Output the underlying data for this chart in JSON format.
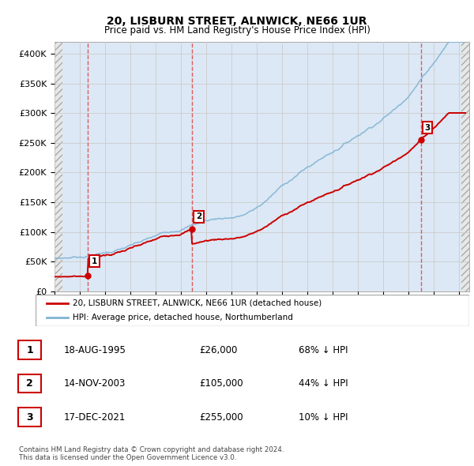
{
  "title1": "20, LISBURN STREET, ALNWICK, NE66 1UR",
  "title2": "Price paid vs. HM Land Registry's House Price Index (HPI)",
  "ylabel_ticks": [
    "£0",
    "£50K",
    "£100K",
    "£150K",
    "£200K",
    "£250K",
    "£300K",
    "£350K",
    "£400K"
  ],
  "ytick_values": [
    0,
    50000,
    100000,
    150000,
    200000,
    250000,
    300000,
    350000,
    400000
  ],
  "ylim": [
    0,
    420000
  ],
  "xlim_start": 1993.0,
  "xlim_end": 2025.8,
  "hatch_left_end": 1993.5,
  "hatch_right_start": 2025.2,
  "sales": [
    {
      "date": 1995.62,
      "price": 26000,
      "label": "1"
    },
    {
      "date": 2003.87,
      "price": 105000,
      "label": "2"
    },
    {
      "date": 2021.96,
      "price": 255000,
      "label": "3"
    }
  ],
  "sale_color": "#cc0000",
  "hpi_color": "#7fb3d3",
  "legend_label_sale": "20, LISBURN STREET, ALNWICK, NE66 1UR (detached house)",
  "legend_label_hpi": "HPI: Average price, detached house, Northumberland",
  "table_rows": [
    {
      "num": "1",
      "date": "18-AUG-1995",
      "price": "£26,000",
      "note": "68% ↓ HPI"
    },
    {
      "num": "2",
      "date": "14-NOV-2003",
      "price": "£105,000",
      "note": "44% ↓ HPI"
    },
    {
      "num": "3",
      "date": "17-DEC-2021",
      "price": "£255,000",
      "note": "10% ↓ HPI"
    }
  ],
  "footer": "Contains HM Land Registry data © Crown copyright and database right 2024.\nThis data is licensed under the Open Government Licence v3.0.",
  "grid_color": "#cccccc",
  "vline_color": "#dd4444",
  "plot_bg": "#dce8f5",
  "hatch_bg": "#e8e8e8"
}
